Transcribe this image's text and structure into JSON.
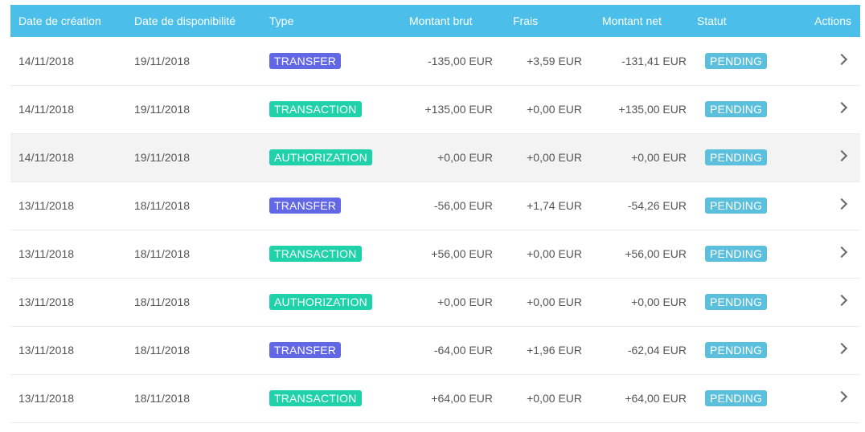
{
  "header": {
    "created": "Date de création",
    "available": "Date de disponibilité",
    "type": "Type",
    "gross": "Montant brut",
    "fees": "Frais",
    "net": "Montant net",
    "status": "Statut",
    "actions": "Actions"
  },
  "colors": {
    "header_bg": "#4bbfe9",
    "transfer": "#6267e6",
    "transaction": "#1fd2a9",
    "pending": "#5bc0de"
  },
  "rows": [
    {
      "created": "14/11/2018",
      "available": "19/11/2018",
      "type": "TRANSFER",
      "type_kind": "transfer",
      "gross": "-135,00 EUR",
      "fees": "+3,59 EUR",
      "net": "-131,41 EUR",
      "status": "PENDING",
      "action_icon": "chevron-right-icon"
    },
    {
      "created": "14/11/2018",
      "available": "19/11/2018",
      "type": "TRANSACTION",
      "type_kind": "transaction",
      "gross": "+135,00 EUR",
      "fees": "+0,00 EUR",
      "net": "+135,00 EUR",
      "status": "PENDING",
      "action_icon": "chevron-right-icon"
    },
    {
      "created": "14/11/2018",
      "available": "19/11/2018",
      "type": "AUTHORIZATION",
      "type_kind": "authorization",
      "gross": "+0,00 EUR",
      "fees": "+0,00 EUR",
      "net": "+0,00 EUR",
      "status": "PENDING",
      "action_icon": "chevron-right-icon"
    },
    {
      "created": "13/11/2018",
      "available": "18/11/2018",
      "type": "TRANSFER",
      "type_kind": "transfer",
      "gross": "-56,00 EUR",
      "fees": "+1,74 EUR",
      "net": "-54,26 EUR",
      "status": "PENDING",
      "action_icon": "chevron-right-icon"
    },
    {
      "created": "13/11/2018",
      "available": "18/11/2018",
      "type": "TRANSACTION",
      "type_kind": "transaction",
      "gross": "+56,00 EUR",
      "fees": "+0,00 EUR",
      "net": "+56,00 EUR",
      "status": "PENDING",
      "action_icon": "chevron-right-icon"
    },
    {
      "created": "13/11/2018",
      "available": "18/11/2018",
      "type": "AUTHORIZATION",
      "type_kind": "authorization",
      "gross": "+0,00 EUR",
      "fees": "+0,00 EUR",
      "net": "+0,00 EUR",
      "status": "PENDING",
      "action_icon": "chevron-right-icon"
    },
    {
      "created": "13/11/2018",
      "available": "18/11/2018",
      "type": "TRANSFER",
      "type_kind": "transfer",
      "gross": "-64,00 EUR",
      "fees": "+1,96 EUR",
      "net": "-62,04 EUR",
      "status": "PENDING",
      "action_icon": "chevron-right-icon"
    },
    {
      "created": "13/11/2018",
      "available": "18/11/2018",
      "type": "TRANSACTION",
      "type_kind": "transaction",
      "gross": "+64,00 EUR",
      "fees": "+0,00 EUR",
      "net": "+64,00 EUR",
      "status": "PENDING",
      "action_icon": "chevron-right-icon"
    }
  ]
}
